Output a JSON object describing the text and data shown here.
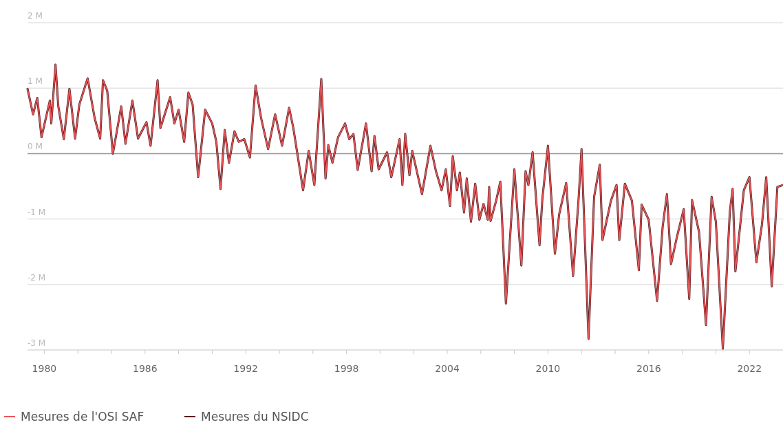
{
  "chart_data": {
    "type": "line",
    "x": [
      "1979-01",
      "1979-05",
      "1979-08",
      "1979-11",
      "1980-05",
      "1980-06",
      "1980-09",
      "1980-11",
      "1981-03",
      "1981-07",
      "1981-11",
      "1982-02",
      "1982-08",
      "1983-01",
      "1983-05",
      "1983-07",
      "1983-10",
      "1984-02",
      "1984-08",
      "1984-11",
      "1985-04",
      "1985-08",
      "1986-02",
      "1986-05",
      "1986-10",
      "1986-12",
      "1987-07",
      "1987-10",
      "1988-01",
      "1988-05",
      "1988-08",
      "1988-11",
      "1989-03",
      "1989-08",
      "1990-01",
      "1990-04",
      "1990-07",
      "1990-10",
      "1991-01",
      "1991-05",
      "1991-08",
      "1991-12",
      "1992-04",
      "1992-08",
      "1992-12",
      "1993-05",
      "1993-10",
      "1994-03",
      "1994-08",
      "1994-11",
      "1995-06",
      "1995-10",
      "1996-02",
      "1996-07",
      "1996-10",
      "1996-12",
      "1997-03",
      "1997-07",
      "1997-12",
      "1998-03",
      "1998-06",
      "1998-09",
      "1999-03",
      "1999-07",
      "1999-09",
      "1999-12",
      "2000-06",
      "2000-09",
      "2001-03",
      "2001-05",
      "2001-07",
      "2001-10",
      "2001-12",
      "2002-07",
      "2003-01",
      "2003-05",
      "2003-09",
      "2003-12",
      "2004-03",
      "2004-05",
      "2004-08",
      "2004-10",
      "2005-01",
      "2005-03",
      "2005-06",
      "2005-09",
      "2005-12",
      "2006-03",
      "2006-06",
      "2006-07",
      "2006-08",
      "2006-12",
      "2007-03",
      "2007-07",
      "2008-01",
      "2008-06",
      "2008-09",
      "2008-11",
      "2009-02",
      "2009-07",
      "2009-09",
      "2010-01",
      "2010-06",
      "2010-09",
      "2011-02",
      "2011-07",
      "2011-11",
      "2012-01",
      "2012-06",
      "2012-10",
      "2013-02",
      "2013-04",
      "2013-10",
      "2014-02",
      "2014-04",
      "2014-08",
      "2015-01",
      "2015-06",
      "2015-08",
      "2016-01",
      "2016-07",
      "2016-11",
      "2017-02",
      "2017-05",
      "2017-09",
      "2018-02",
      "2018-06",
      "2018-08",
      "2019-01",
      "2019-06",
      "2019-10",
      "2020-01",
      "2020-06",
      "2020-11",
      "2021-01",
      "2021-03",
      "2021-09",
      "2022-01",
      "2022-06",
      "2022-10",
      "2023-01",
      "2023-05",
      "2023-09",
      "2024-01"
    ],
    "series": [
      {
        "name": "Mesures du NSIDC",
        "color": "#5c1a1f",
        "values": [
          0.99,
          0.6,
          0.85,
          0.25,
          0.81,
          0.46,
          1.36,
          0.72,
          0.22,
          0.99,
          0.23,
          0.75,
          1.15,
          0.54,
          0.23,
          1.12,
          0.96,
          0.0,
          0.72,
          0.15,
          0.81,
          0.23,
          0.48,
          0.12,
          1.12,
          0.39,
          0.86,
          0.46,
          0.67,
          0.18,
          0.93,
          0.75,
          -0.36,
          0.67,
          0.46,
          0.18,
          -0.54,
          0.36,
          -0.14,
          0.34,
          0.18,
          0.22,
          -0.06,
          1.04,
          0.54,
          0.07,
          0.6,
          0.12,
          0.7,
          0.39,
          -0.56,
          0.04,
          -0.48,
          1.14,
          -0.38,
          0.13,
          -0.14,
          0.25,
          0.46,
          0.22,
          0.3,
          -0.25,
          0.46,
          -0.27,
          0.27,
          -0.24,
          0.02,
          -0.36,
          0.22,
          -0.48,
          0.3,
          -0.33,
          0.04,
          -0.62,
          0.12,
          -0.27,
          -0.56,
          -0.24,
          -0.8,
          -0.04,
          -0.56,
          -0.29,
          -0.9,
          -0.38,
          -1.04,
          -0.46,
          -1.01,
          -0.77,
          -1.01,
          -0.51,
          -1.03,
          -0.72,
          -0.43,
          -2.29,
          -0.24,
          -1.71,
          -0.27,
          -0.48,
          0.02,
          -1.4,
          -0.69,
          0.12,
          -1.53,
          -0.93,
          -0.45,
          -1.87,
          -0.66,
          0.07,
          -2.83,
          -0.66,
          -0.17,
          -1.32,
          -0.72,
          -0.48,
          -1.32,
          -0.46,
          -0.72,
          -1.78,
          -0.78,
          -1.01,
          -2.25,
          -1.11,
          -0.62,
          -1.69,
          -1.29,
          -0.85,
          -2.22,
          -0.71,
          -1.2,
          -2.62,
          -0.66,
          -1.04,
          -2.98,
          -0.88,
          -0.54,
          -1.8,
          -0.56,
          -0.36,
          -1.66,
          -1.08,
          -0.36,
          -2.03,
          -0.51,
          -0.48
        ]
      },
      {
        "name": "Mesures de l'OSI SAF",
        "color": "#e8585a",
        "values": [
          0.99,
          0.6,
          0.85,
          0.25,
          0.81,
          0.46,
          1.36,
          0.72,
          0.22,
          0.99,
          0.23,
          0.75,
          1.15,
          0.54,
          0.23,
          1.12,
          0.96,
          0.0,
          0.72,
          0.15,
          0.81,
          0.23,
          0.48,
          0.12,
          1.12,
          0.39,
          0.86,
          0.46,
          0.67,
          0.18,
          0.93,
          0.75,
          -0.36,
          0.67,
          0.46,
          0.18,
          -0.54,
          0.36,
          -0.14,
          0.34,
          0.18,
          0.22,
          -0.06,
          1.04,
          0.54,
          0.07,
          0.6,
          0.12,
          0.7,
          0.39,
          -0.56,
          0.04,
          -0.48,
          1.14,
          -0.38,
          0.13,
          -0.14,
          0.25,
          0.46,
          0.22,
          0.3,
          -0.25,
          0.46,
          -0.27,
          0.27,
          -0.24,
          0.02,
          -0.36,
          0.22,
          -0.48,
          0.3,
          -0.33,
          0.04,
          -0.62,
          0.12,
          -0.27,
          -0.56,
          -0.24,
          -0.8,
          -0.04,
          -0.56,
          -0.29,
          -0.9,
          -0.38,
          -1.04,
          -0.46,
          -1.01,
          -0.77,
          -1.01,
          -0.51,
          -1.03,
          -0.72,
          -0.43,
          -2.29,
          -0.24,
          -1.71,
          -0.27,
          -0.48,
          0.02,
          -1.4,
          -0.69,
          0.12,
          -1.53,
          -0.93,
          -0.45,
          -1.87,
          -0.66,
          0.07,
          -2.83,
          -0.66,
          -0.17,
          -1.32,
          -0.72,
          -0.48,
          -1.32,
          -0.46,
          -0.72,
          -1.78,
          -0.78,
          -1.01,
          -2.25,
          -1.11,
          -0.62,
          -1.69,
          -1.29,
          -0.85,
          -2.22,
          -0.71,
          -1.2,
          -2.62,
          -0.66,
          -1.04,
          -2.98,
          -0.88,
          -0.54,
          -1.8,
          -0.56,
          -0.36,
          -1.66,
          -1.08,
          -0.36,
          -2.03,
          -0.51,
          -0.48
        ]
      }
    ],
    "xlim": [
      "1979-01",
      "2024-01"
    ],
    "xticks": [
      {
        "value": "1980",
        "label": "1980"
      },
      {
        "value": "1982",
        "label": null
      },
      {
        "value": "1984",
        "label": null
      },
      {
        "value": "1986",
        "label": "1986"
      },
      {
        "value": "1988",
        "label": null
      },
      {
        "value": "1990",
        "label": null
      },
      {
        "value": "1992",
        "label": "1992"
      },
      {
        "value": "1994",
        "label": null
      },
      {
        "value": "1996",
        "label": null
      },
      {
        "value": "1998",
        "label": "1998"
      },
      {
        "value": "2000",
        "label": null
      },
      {
        "value": "2002",
        "label": null
      },
      {
        "value": "2004",
        "label": "2004"
      },
      {
        "value": "2006",
        "label": null
      },
      {
        "value": "2008",
        "label": null
      },
      {
        "value": "2010",
        "label": "2010"
      },
      {
        "value": "2012",
        "label": null
      },
      {
        "value": "2014",
        "label": null
      },
      {
        "value": "2016",
        "label": "2016"
      },
      {
        "value": "2018",
        "label": null
      },
      {
        "value": "2020",
        "label": null
      },
      {
        "value": "2022",
        "label": "2022"
      }
    ],
    "ylim": [
      -3,
      2
    ],
    "yticks": [
      {
        "value": -3,
        "label": "-3 M"
      },
      {
        "value": -2,
        "label": "-2 M"
      },
      {
        "value": -1,
        "label": "-1 M"
      },
      {
        "value": 0,
        "label": "0 M"
      },
      {
        "value": 1,
        "label": "1 M"
      },
      {
        "value": 2,
        "label": "2 M"
      }
    ],
    "ref_lines": [
      {
        "axis": "y",
        "value": 0,
        "color": "#9a9a9a"
      }
    ],
    "grid": "y",
    "legend": "bottom left",
    "line_style": "solid",
    "marker": "none"
  }
}
